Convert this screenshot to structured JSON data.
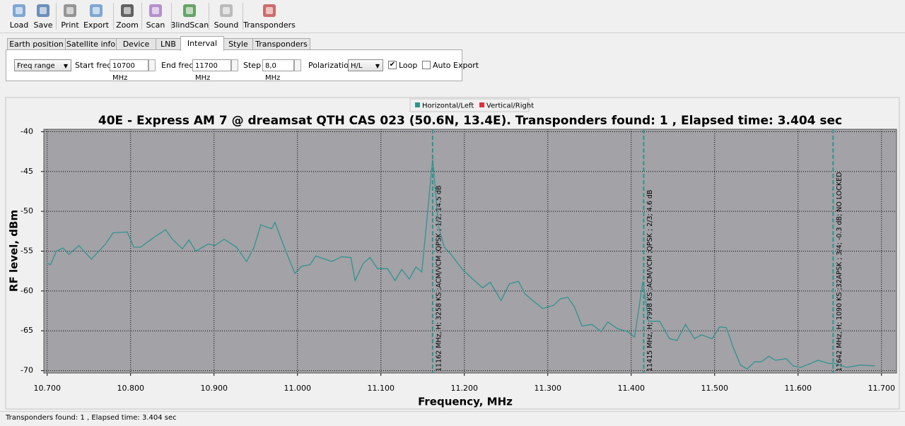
{
  "toolbar": [
    "Load",
    "Save",
    "Print",
    "Export",
    "Zoom",
    "Scan",
    "BlindScan",
    "Sound",
    "Transponders"
  ],
  "tabs": {
    "items": [
      "Earth position",
      "Satellite info",
      "Device",
      "LNB",
      "Interval",
      "Style",
      "Transponders"
    ],
    "active": 4
  },
  "controls": {
    "mode": "Freq range",
    "start_freq_label": "Start freq",
    "start_freq": "10700 MHz",
    "end_freq_label": "End freq",
    "end_freq": "11700 MHz",
    "step_label": "Step",
    "step": "8,0 MHz",
    "polarization_label": "Polarization",
    "polarization": "H/L",
    "loop": {
      "label": "Loop",
      "checked": true
    },
    "auto_export": {
      "label": "Auto Export",
      "checked": false
    }
  },
  "chart_data": {
    "type": "line",
    "title": "40E - Express AM 7 @ dreamsat QTH CAS 023 (50.6N, 13.4E). Transponders found: 1 , Elapsed time: 3.404 sec",
    "x_label": "Frequency, MHz",
    "y_label": "RF level, dBm",
    "xlim": [
      10696,
      11718
    ],
    "ylim": [
      -70.3,
      -39.7
    ],
    "xticks": [
      {
        "value": 10700,
        "label": "10.700"
      },
      {
        "value": 10800,
        "label": "10.800"
      },
      {
        "value": 10900,
        "label": "10.900"
      },
      {
        "value": 11000,
        "label": "11.000"
      },
      {
        "value": 11100,
        "label": "11.100"
      },
      {
        "value": 11200,
        "label": "11.200"
      },
      {
        "value": 11300,
        "label": "11.300"
      },
      {
        "value": 11400,
        "label": "11.400"
      },
      {
        "value": 11500,
        "label": "11.500"
      },
      {
        "value": 11600,
        "label": "11.600"
      },
      {
        "value": 11700,
        "label": "11.700"
      }
    ],
    "yticks": [
      -40,
      -45,
      -50,
      -55,
      -60,
      -65,
      -70
    ],
    "grid": true,
    "plot_background": "#a3a2a7",
    "series": [
      {
        "name": "Horizontal/Left",
        "color": "#2f9490",
        "x": [
          10700,
          10704,
          10711,
          10719,
          10726,
          10738,
          10753,
          10770,
          10779,
          10796,
          10804,
          10812,
          10829,
          10842,
          10850,
          10862,
          10870,
          10878,
          10893,
          10901,
          10912,
          10927,
          10939,
          10948,
          10956,
          10969,
          10973,
          10986,
          10997,
          11005,
          11015,
          11022,
          11041,
          11053,
          11064,
          11069,
          11079,
          11087,
          11096,
          11108,
          11117,
          11125,
          11134,
          11142,
          11149,
          11156,
          11162,
          11169,
          11176,
          11184,
          11197,
          11210,
          11222,
          11231,
          11244,
          11254,
          11265,
          11273,
          11282,
          11294,
          11307,
          11315,
          11324,
          11332,
          11341,
          11353,
          11364,
          11372,
          11383,
          11396,
          11404,
          11414,
          11421,
          11434,
          11446,
          11455,
          11465,
          11476,
          11484,
          11497,
          11506,
          11514,
          11522,
          11531,
          11539,
          11548,
          11556,
          11565,
          11573,
          11586,
          11594,
          11603,
          11615,
          11624,
          11637,
          11645,
          11658,
          11675,
          11692
        ],
        "values": [
          -56.5,
          -56.7,
          -55,
          -54.6,
          -55.4,
          -54.3,
          -56,
          -54.1,
          -52.7,
          -52.6,
          -54.5,
          -54.5,
          -53.2,
          -52.3,
          -53.5,
          -54.7,
          -53.6,
          -55,
          -54.1,
          -54.3,
          -53.5,
          -54.5,
          -56.3,
          -54.5,
          -51.7,
          -52.2,
          -51.4,
          -55,
          -57.8,
          -56.9,
          -56.7,
          -55.6,
          -56.3,
          -55.7,
          -55.8,
          -58.7,
          -56.5,
          -55.8,
          -57.2,
          -57.2,
          -58.7,
          -57.3,
          -58.5,
          -57,
          -57.6,
          -50.1,
          -43.5,
          -51.9,
          -54.5,
          -55.4,
          -57.2,
          -58.5,
          -59.6,
          -58.9,
          -61.2,
          -59.1,
          -58.8,
          -60.4,
          -61.2,
          -62.2,
          -61.8,
          -61,
          -60.8,
          -62,
          -64.4,
          -64.2,
          -65.1,
          -63.9,
          -64.7,
          -65.1,
          -65.8,
          -58.8,
          -63.8,
          -63.8,
          -66,
          -66.2,
          -64.2,
          -66,
          -65.5,
          -66,
          -64.5,
          -64.6,
          -67,
          -69.3,
          -69.8,
          -68.9,
          -68.9,
          -68.2,
          -68.7,
          -68.5,
          -69.4,
          -69.6,
          -69.1,
          -68.7,
          -69.1,
          -69.1,
          -69.6,
          -69.3,
          -69.4
        ]
      },
      {
        "name": "Vertical/Right",
        "color": "#e0303a",
        "x": [],
        "values": []
      }
    ],
    "markers": [
      {
        "x": 11162,
        "label": "11162 MHz, H; 3258 KS ;ACM/VCM ;QPSK ; 1/2; 14.5 dB"
      },
      {
        "x": 11415,
        "label": "11415 MHz, H; 7998 KS ;ACM/VCM ;QPSK ; 2/3; 4.6 dB"
      },
      {
        "x": 11642,
        "label": "11642 MHz, H; 1090 KS ;32APSK ; 3/4; -0.3 dB; NO LOCKED"
      }
    ]
  },
  "status": "Transponders found: 1 , Elapsed time: 3.404 sec"
}
